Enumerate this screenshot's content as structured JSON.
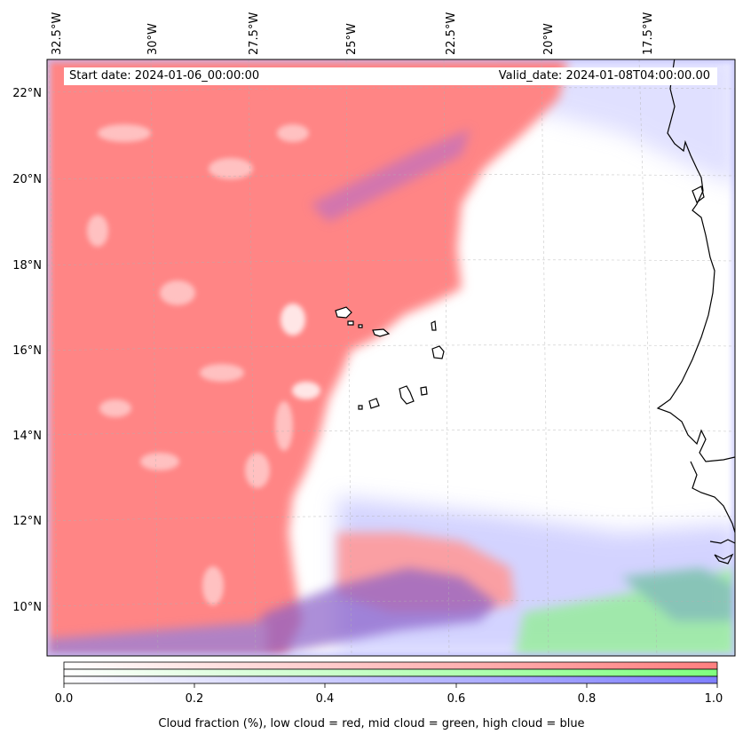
{
  "header": {
    "start_date": "Start date: 2024-01-06_00:00:00",
    "valid_date": "Valid_date: 2024-01-08T04:00:00.00"
  },
  "lon_ticks": [
    "32.5°W",
    "30°W",
    "27.5°W",
    "25°W",
    "22.5°W",
    "20°W",
    "17.5°W"
  ],
  "lat_ticks": [
    "22°N",
    "20°N",
    "18°N",
    "16°N",
    "14°N",
    "12°N",
    "10°N"
  ],
  "colorbar": {
    "tick_labels": [
      "0.0",
      "0.2",
      "0.4",
      "0.6",
      "0.8",
      "1.0"
    ],
    "title": "Cloud fraction (%), low cloud = red, mid cloud = green, high cloud = blue",
    "colors": {
      "low": "#ff7f7f",
      "mid": "#7fff7f",
      "high": "#7f7fff"
    }
  },
  "map": {
    "extent_lon": [
      -32.5,
      -15.5
    ],
    "extent_lat": [
      9,
      22.5
    ],
    "gridlines": true,
    "colors": {
      "low_cloud": "#ff8585",
      "mid_cloud": "#90f090",
      "high_cloud": "#8888f0",
      "coast": "#000000"
    }
  }
}
